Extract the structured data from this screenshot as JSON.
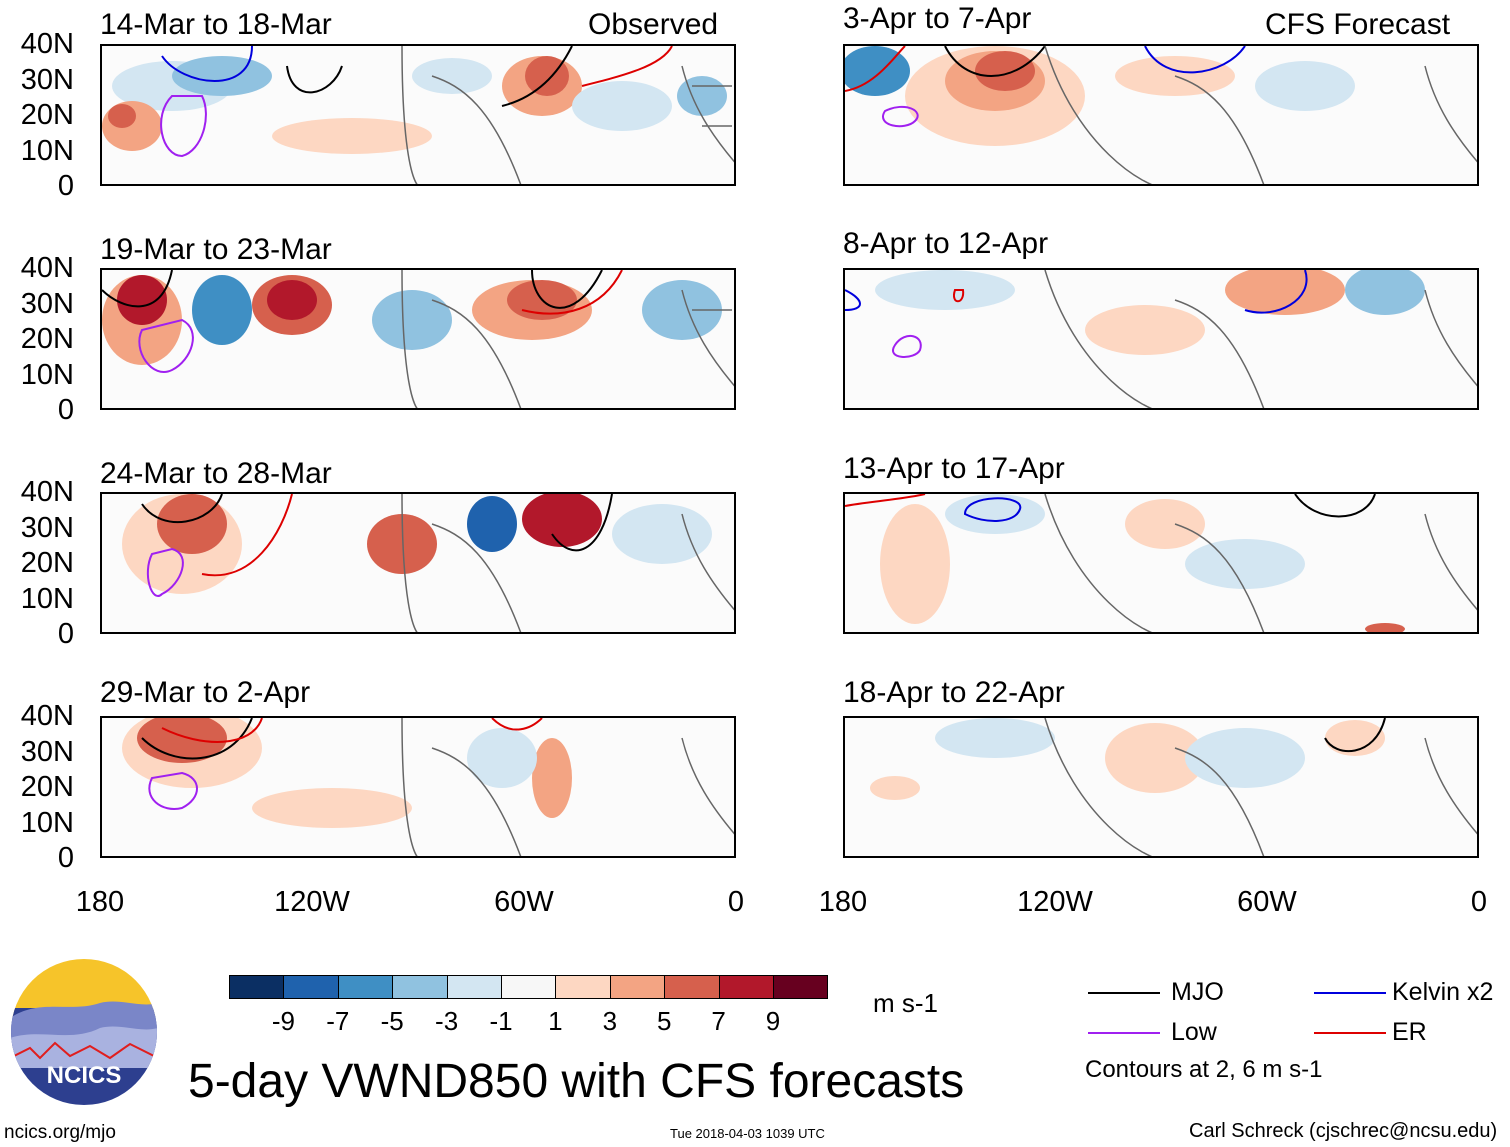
{
  "columns": {
    "left_header": "Observed",
    "right_header": "CFS Forecast"
  },
  "panels": {
    "left": [
      {
        "title": "14-Mar to 18-Mar"
      },
      {
        "title": "19-Mar to 23-Mar"
      },
      {
        "title": "24-Mar to 28-Mar"
      },
      {
        "title": "29-Mar to 2-Apr"
      }
    ],
    "right": [
      {
        "title": "3-Apr to 7-Apr"
      },
      {
        "title": "8-Apr to 12-Apr"
      },
      {
        "title": "13-Apr to 17-Apr"
      },
      {
        "title": "18-Apr to 22-Apr"
      }
    ]
  },
  "axes": {
    "lat_labels": [
      "40N",
      "30N",
      "20N",
      "10N",
      "0"
    ],
    "lon_labels": [
      "180",
      "120W",
      "60W",
      "0"
    ]
  },
  "colorbar": {
    "colors": [
      "#0b2f63",
      "#1f62ad",
      "#3f8fc4",
      "#90c2e0",
      "#d3e6f2",
      "#f7f7f7",
      "#fdd7c2",
      "#f3a483",
      "#d6604d",
      "#b2182b",
      "#67001f"
    ],
    "labels": [
      "-9",
      "-7",
      "-5",
      "-3",
      "-1",
      "1",
      "3",
      "5",
      "7",
      "9"
    ],
    "units": "m s-1"
  },
  "legend": {
    "items": [
      {
        "label": "MJO",
        "color": "#000000"
      },
      {
        "label": "Kelvin x2",
        "color": "#0000dd"
      },
      {
        "label": "Low",
        "color": "#a020f0"
      },
      {
        "label": "ER",
        "color": "#dd0000"
      }
    ],
    "note": "Contours at 2, 6 m s-1"
  },
  "logo": {
    "text": "NCICS"
  },
  "footer": {
    "title": "5-day VWND850 with CFS forecasts",
    "site": "ncics.org/mjo",
    "timestamp": "Tue 2018-04-03 1039 UTC",
    "credit": "Carl Schreck (cjschrec@ncsu.edu)"
  }
}
